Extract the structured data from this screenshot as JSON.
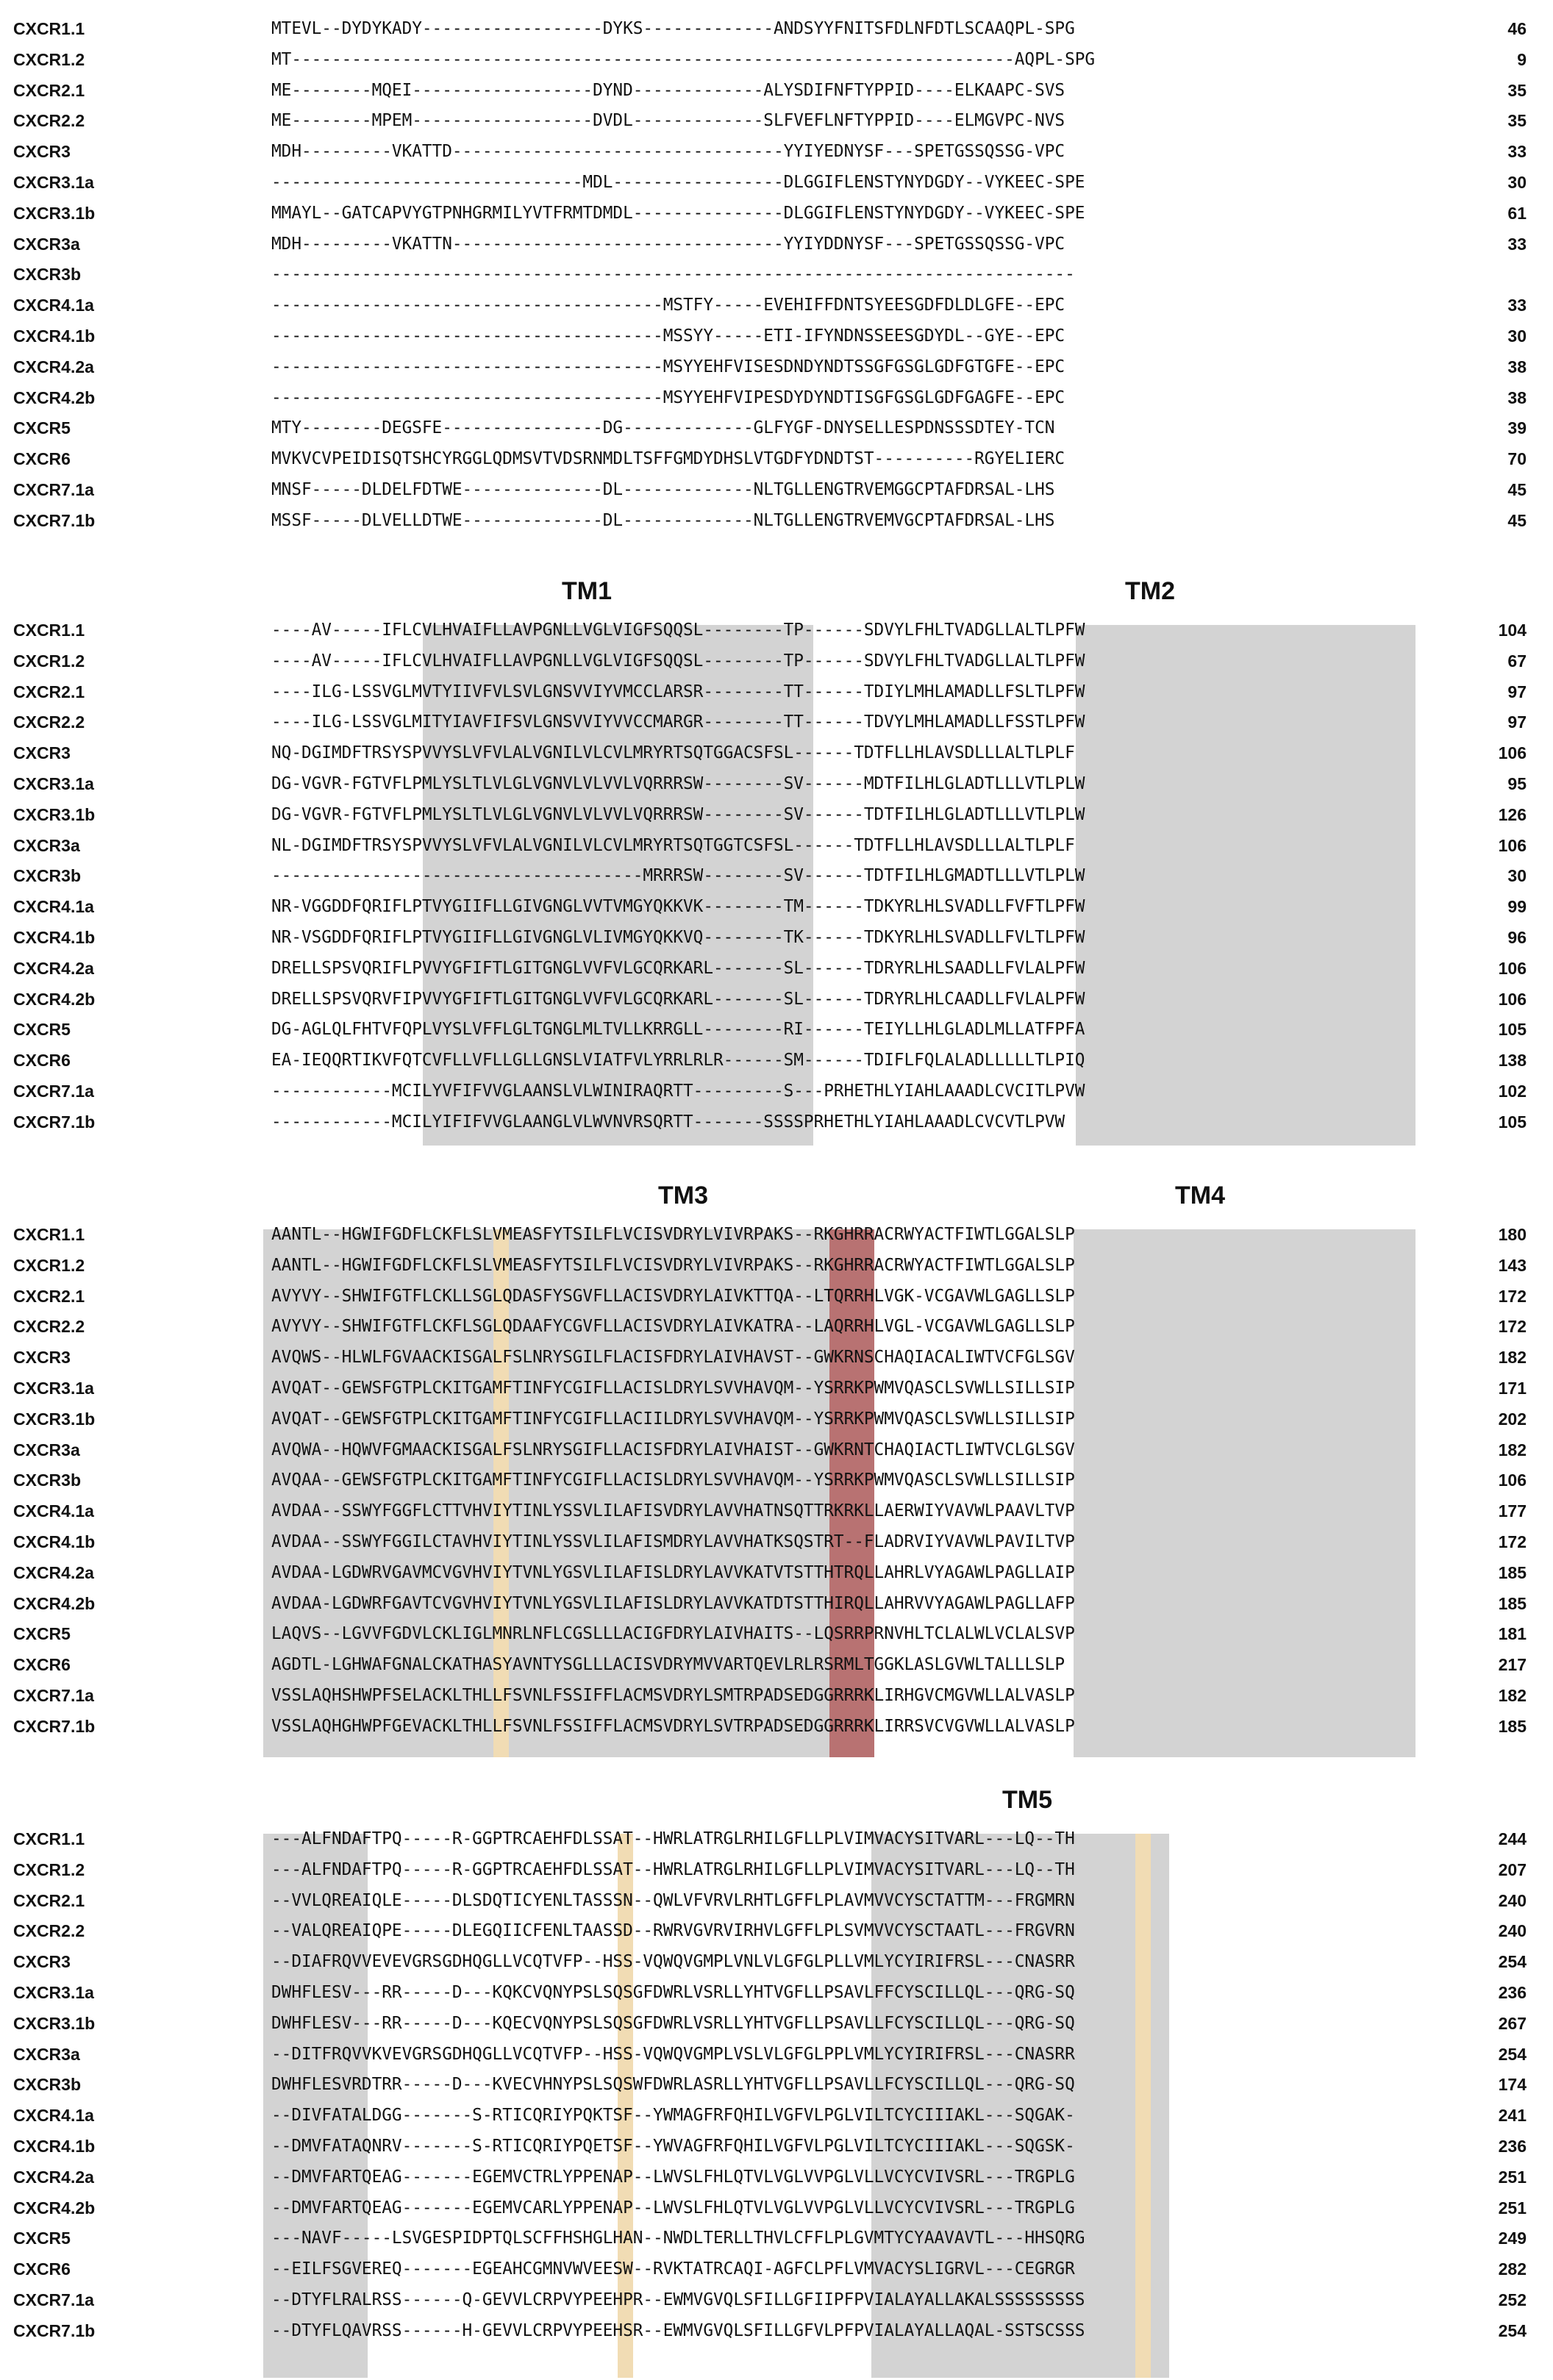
{
  "highlight_colors": {
    "tm_region": "#d3d3d3",
    "cysteine": "#f1dcb4",
    "dry_motif": "#b87272"
  },
  "blocks": [
    {
      "headers": [],
      "rows": [
        {
          "name": "CXCR1.1",
          "seq": "MTEVL--DYDYKADY------------------DYKS-------------ANDSYYFNITSFDLNFDTLSCAAQPL-SPG",
          "num": "46"
        },
        {
          "name": "CXCR1.2",
          "seq": "MT------------------------------------------------------------------------AQPL-SPG",
          "num": "9"
        },
        {
          "name": "CXCR2.1",
          "seq": "ME--------MQEI------------------DYND-------------ALYSDIFNFTYPPID----ELKAAPC-SVS",
          "num": "35"
        },
        {
          "name": "CXCR2.2",
          "seq": "ME--------MPEM------------------DVDL-------------SLFVEFLNFTYPPID----ELMGVPC-NVS",
          "num": "35"
        },
        {
          "name": "CXCR3",
          "seq": "MDH---------VKATTD---------------------------------YYIYEDNYSF---SPETGSSQSSG-VPC",
          "num": "33"
        },
        {
          "name": "CXCR3.1a",
          "seq": "-------------------------------MDL-----------------DLGGIFLENSTYNYDGDY--VYKEEC-SPE",
          "num": "30"
        },
        {
          "name": "CXCR3.1b",
          "seq": "MMAYL--GATCAPVYGTPNHGRMILYVTFRMTDMDL---------------DLGGIFLENSTYNYDGDY--VYKEEC-SPE",
          "num": "61"
        },
        {
          "name": "CXCR3a",
          "seq": "MDH---------VKATTN---------------------------------YYIYDDNYSF---SPETGSSQSSG-VPC",
          "num": "33"
        },
        {
          "name": "CXCR3b",
          "seq": "--------------------------------------------------------------------------------",
          "num": ""
        },
        {
          "name": "CXCR4.1a",
          "seq": "---------------------------------------MSTFY-----EVEHIFFDNTSYEESGDFDLDLGFE--EPC",
          "num": "33"
        },
        {
          "name": "CXCR4.1b",
          "seq": "---------------------------------------MSSYY-----ETI-IFYNDNSSEESGDYDL--GYE--EPC",
          "num": "30"
        },
        {
          "name": "CXCR4.2a",
          "seq": "---------------------------------------MSYYEHFVISESDNDYNDTSSGFGSGLGDFGTGFE--EPC",
          "num": "38"
        },
        {
          "name": "CXCR4.2b",
          "seq": "---------------------------------------MSYYEHFVIPESDYDYNDTISGFGSGLGDFGAGFE--EPC",
          "num": "38"
        },
        {
          "name": "CXCR5",
          "seq": "MTY--------DEGSFE----------------DG-------------GLFYGF-DNYSELLESPDNSSSDTEY-TCN",
          "num": "39"
        },
        {
          "name": "CXCR6",
          "seq": "MVKVCVPEIDISQTSHCYRGGLQDMSVTVDSRNMDLTSFFGMDYDHSLVTGDFYDNDTST----------RGYELIERC",
          "num": "70"
        },
        {
          "name": "CXCR7.1a",
          "seq": "MNSF-----DLDELFDTWE--------------DL-------------NLTGLLENGTRVEMGGCPTAFDRSAL-LHS",
          "num": "45"
        },
        {
          "name": "CXCR7.1b",
          "seq": "MSSF-----DLVELLDTWE--------------DL-------------NLTGLLENGTRVEMVGCPTAFDRSAL-LHS",
          "num": "45"
        }
      ]
    },
    {
      "headers": [
        "TM1",
        "TM2"
      ],
      "rows": [
        {
          "name": "CXCR1.1",
          "seq": "----AV-----IFLCVLHVAIFLLAVPGNLLVGLVIGFSQQSL--------TP------SDVYLFHLTVADGLLALTLPFW",
          "num": "104"
        },
        {
          "name": "CXCR1.2",
          "seq": "----AV-----IFLCVLHVAIFLLAVPGNLLVGLVIGFSQQSL--------TP------SDVYLFHLTVADGLLALTLPFW",
          "num": "67"
        },
        {
          "name": "CXCR2.1",
          "seq": "----ILG-LSSVGLMVTYIIVFVLSVLGNSVVIYVMCCLARSR--------TT------TDIYLMHLAMADLLFSLTLPFW",
          "num": "97"
        },
        {
          "name": "CXCR2.2",
          "seq": "----ILG-LSSVGLMITYIAVFIFSVLGNSVVIYVVCCMARGR--------TT------TDVYLMHLAMADLLFSSTLPFW",
          "num": "97"
        },
        {
          "name": "CXCR3",
          "seq": "NQ-DGIMDFTRSYSPVVYSLVFVLALVGNILVLCVLMRYRTSQTGGACSFSL------TDTFLLHLAVSDLLLALTLPLF",
          "num": "106"
        },
        {
          "name": "CXCR3.1a",
          "seq": "DG-VGVR-FGTVFLPMLYSLTLVLGLVGNVLVLVVLVQRRRSW--------SV------MDTFILHLGLADTLLLVTLPLW",
          "num": "95"
        },
        {
          "name": "CXCR3.1b",
          "seq": "DG-VGVR-FGTVFLPMLYSLTLVLGLVGNVLVLVVLVQRRRSW--------SV------TDTFILHLGLADTLLLVTLPLW",
          "num": "126"
        },
        {
          "name": "CXCR3a",
          "seq": "NL-DGIMDFTRSYSPVVYSLVFVLALVGNILVLCVLMRYRTSQTGGTCSFSL------TDTFLLHLAVSDLLLALTLPLF",
          "num": "106"
        },
        {
          "name": "CXCR3b",
          "seq": "-------------------------------------MRRRSW--------SV------TDTFILHLGMADTLLLVTLPLW",
          "num": "30"
        },
        {
          "name": "CXCR4.1a",
          "seq": "NR-VGGDDFQRIFLPTVYGIIFLLGIVGNGLVVTVMGYQKKVK--------TM------TDKYRLHLSVADLLFVFTLPFW",
          "num": "99"
        },
        {
          "name": "CXCR4.1b",
          "seq": "NR-VSGDDFQRIFLPTVYGIIFLLGIVGNGLVLIVMGYQKKVQ--------TK------TDKYRLHLSVADLLFVLTLPFW",
          "num": "96"
        },
        {
          "name": "CXCR4.2a",
          "seq": "DRELLSPSVQRIFLPVVYGFIFTLGITGNGLVVFVLGCQRKARL-------SL------TDRYRLHLSAADLLFVLALPFW",
          "num": "106"
        },
        {
          "name": "CXCR4.2b",
          "seq": "DRELLSPSVQRVFIPVVYGFIFTLGITGNGLVVFVLGCQRKARL-------SL------TDRYRLHLCAADLLFVLALPFW",
          "num": "106"
        },
        {
          "name": "CXCR5",
          "seq": "DG-AGLQLFHTVFQPLVYSLVFFLGLTGNGLMLTVLLKRRGLL--------RI------TEIYLLHLGLADLMLLATFPFA",
          "num": "105"
        },
        {
          "name": "CXCR6",
          "seq": "EA-IEQQRTIKVFQTCVFLLVFLLGLLGNSLVIATFVLYRRLRLR------SM------TDIFLFQLALADLLLLLTLPIQ",
          "num": "138"
        },
        {
          "name": "CXCR7.1a",
          "seq": "------------MCILYVFIFVVGLAANSLVLWINIRAQRTT---------S---PRHETHLYIAHLAAADLCVCITLPVW",
          "num": "102"
        },
        {
          "name": "CXCR7.1b",
          "seq": "------------MCILYIFIFVVGLAANGLVLWVNVRSQRTT-------SSSSPRHETHLYIAHLAAADLCVCVTLPVW",
          "num": "105"
        }
      ]
    },
    {
      "headers": [
        "TM3",
        "TM4"
      ],
      "rows": [
        {
          "name": "CXCR1.1",
          "seq": "AANTL--HGWIFGDFLCKFLSLVMEASFYTSILFLVCISVDRYLVIVRPAKS--RKGHRRACRWYACTFIWTLGGALSLP",
          "num": "180"
        },
        {
          "name": "CXCR1.2",
          "seq": "AANTL--HGWIFGDFLCKFLSLVMEASFYTSILFLVCISVDRYLVIVRPAKS--RKGHRRACRWYACTFIWTLGGALSLP",
          "num": "143"
        },
        {
          "name": "CXCR2.1",
          "seq": "AVYVY--SHWIFGTFLCKLLSGLQDASFYSGVFLLACISVDRYLAIVKTTQA--LTQRRHLVGK-VCGAVWLGAGLLSLP",
          "num": "172"
        },
        {
          "name": "CXCR2.2",
          "seq": "AVYVY--SHWIFGTFLCKFLSGLQDAAFYCGVFLLACISVDRYLAIVKATRA--LAQRRHLVGL-VCGAVWLGAGLLSLP",
          "num": "172"
        },
        {
          "name": "CXCR3",
          "seq": "AVQWS--HLWLFGVAACKISGALFSLNRYSGILFLACISFDRYLAIVHAVST--GWKRNSCHAQIACALIWTVCFGLSGV",
          "num": "182"
        },
        {
          "name": "CXCR3.1a",
          "seq": "AVQAT--GEWSFGTPLCKITGAMFTINFYCGIFLLACISLDRYLSVVHAVQM--YSRRKPWMVQASCLSVWLLSILLSIP",
          "num": "171"
        },
        {
          "name": "CXCR3.1b",
          "seq": "AVQAT--GEWSFGTPLCKITGAMFTINFYCGIFLLACIILDRYLSVVHAVQM--YSRRKPWMVQASCLSVWLLSILLSIP",
          "num": "202"
        },
        {
          "name": "CXCR3a",
          "seq": "AVQWA--HQWVFGMAACKISGALFSLNRYSGIFLLACISFDRYLAIVHAIST--GWKRNTCHAQIACTLIWTVCLGLSGV",
          "num": "182"
        },
        {
          "name": "CXCR3b",
          "seq": "AVQAA--GEWSFGTPLCKITGAMFTINFYCGIFLLACISLDRYLSVVHAVQM--YSRRKPWMVQASCLSVWLLSILLSIP",
          "num": "106"
        },
        {
          "name": "CXCR4.1a",
          "seq": "AVDAA--SSWYFGGFLCTTVHVIYTINLYSSVLILAFISVDRYLAVVHATNSQTTRKRKLLAERWIYVAVWLPAAVLTVP",
          "num": "177"
        },
        {
          "name": "CXCR4.1b",
          "seq": "AVDAA--SSWYFGGILCTAVHVIYTINLYSSVLILAFISMDRYLAVVHATKSQSTRT--FLADRVIYVAVWLPAVILTVP",
          "num": "172"
        },
        {
          "name": "CXCR4.2a",
          "seq": "AVDAA-LGDWRVGAVMCVGVHVIYTVNLYGSVLILAFISLDRYLAVVKATVTSTTHTRQLLAHRLVYAGAWLPAGLLAIP",
          "num": "185"
        },
        {
          "name": "CXCR4.2b",
          "seq": "AVDAA-LGDWRFGAVTCVGVHVIYTVNLYGSVLILAFISLDRYLAVVKATDTSTTHIRQLLAHRVVYAGAWLPAGLLAFP",
          "num": "185"
        },
        {
          "name": "CXCR5",
          "seq": "LAQVS--LGVVFGDVLCKLIGLMNRLNFLCGSLLLACIGFDRYLAIVHAITS--LQSRRPRNVHLTCLALWLVCLALSVP",
          "num": "181"
        },
        {
          "name": "CXCR6",
          "seq": "AGDTL-LGHWAFGNALCKATHASYAVNTYSGLLLACISVDRYMVVARTQEVLRLRSRMLTGGKLASLGVWLTALLLSLP",
          "num": "217"
        },
        {
          "name": "CXCR7.1a",
          "seq": "VSSLAQHSHWPFSELACKLTHLLFSVNLFSSIFFLACMSVDRYLSMTRPADSEDGGRRRKLIRHGVCMGVWLLALVASLP",
          "num": "182"
        },
        {
          "name": "CXCR7.1b",
          "seq": "VSSLAQHGHWPFGEVACKLTHLLFSVNLFSSIFFLACMSVDRYLSVTRPADSEDGGRRRKLIRRSVCVGVWLLALVASLP",
          "num": "185"
        }
      ]
    },
    {
      "headers": [
        "TM5"
      ],
      "rows": [
        {
          "name": "CXCR1.1",
          "seq": "---ALFNDAFTPQ-----R-GGPTRCAEHFDLSSAT--HWRLATRGLRHILGFLLPLVIMVACYSITVARL---LQ--TH",
          "num": "244"
        },
        {
          "name": "CXCR1.2",
          "seq": "---ALFNDAFTPQ-----R-GGPTRCAEHFDLSSAT--HWRLATRGLRHILGFLLPLVIMVACYSITVARL---LQ--TH",
          "num": "207"
        },
        {
          "name": "CXCR2.1",
          "seq": "--VVLQREAIQLE-----DLSDQTICYENLTASSSN--QWLVFVRVLRHTLGFFLPLAVMVVCYSCTATTM---FRGMRN",
          "num": "240"
        },
        {
          "name": "CXCR2.2",
          "seq": "--VALQREAIQPE-----DLEGQIICFENLTAASSD--RWRVGVRVIRHVLGFFLPLSVMVVCYSCTAATL---FRGVRN",
          "num": "240"
        },
        {
          "name": "CXCR3",
          "seq": "--DIAFRQVVEVEVGRSGDHQGLLVCQTVFP--HSS-VQWQVGMPLVNLVLGFGLPLLVMLYCYIRIFRSL---CNASRR",
          "num": "254"
        },
        {
          "name": "CXCR3.1a",
          "seq": "DWHFLESV---RR-----D---KQKCVQNYPSLSQSGFDWRLVSRLLYHTVGFLLPSAVLFFCYSCILLQL---QRG-SQ",
          "num": "236"
        },
        {
          "name": "CXCR3.1b",
          "seq": "DWHFLESV---RR-----D---KQECVQNYPSLSQSGFDWRLVSRLLYHTVGFLLPSAVLLFCYSCILLQL---QRG-SQ",
          "num": "267"
        },
        {
          "name": "CXCR3a",
          "seq": "--DITFRQVVKVEVGRSGDHQGLLVCQTVFP--HSS-VQWQVGMPLVSLVLGFGLPPLVMLYCYIRIFRSL---CNASRR",
          "num": "254"
        },
        {
          "name": "CXCR3b",
          "seq": "DWHFLESVRDTRR-----D---KVECVHNYPSLSQSWFDWRLASRLLYHTVGFLLPSAVLLFCYSCILLQL---QRG-SQ",
          "num": "174"
        },
        {
          "name": "CXCR4.1a",
          "seq": "--DIVFATALDGG-------S-RTICQRIYPQKTSF--YWMAGFRFQHILVGFVLPGLVILTCYCIIIAKL---SQGAK-",
          "num": "241"
        },
        {
          "name": "CXCR4.1b",
          "seq": "--DMVFATAQNRV-------S-RTICQRIYPQETSF--YWVAGFRFQHILVGFVLPGLVILTCYCIIIAKL---SQGSK-",
          "num": "236"
        },
        {
          "name": "CXCR4.2a",
          "seq": "--DMVFARTQEAG-------EGEMVCTRLYPPENAP--LWVSLFHLQTVLVGLVVPGLVLLVCYCVIVSRL---TRGPLG",
          "num": "251"
        },
        {
          "name": "CXCR4.2b",
          "seq": "--DMVFARTQEAG-------EGEMVCARLYPPENAP--LWVSLFHLQTVLVGLVVPGLVLLVCYCVIVSRL---TRGPLG",
          "num": "251"
        },
        {
          "name": "CXCR5",
          "seq": "---NAVF-----LSVGESPIDPTQLSCFFHSHGLHAN--NWDLTERLLTHVLCFFLPLGVMTYCYAAVAVTL---HHSQRG",
          "num": "249"
        },
        {
          "name": "CXCR6",
          "seq": "--EILFSGVEREQ-------EGEAHCGMNVWVEESW--RVKTATRCAQI-AGFCLPFLVMVACYSLIGRVL---CEGRGR",
          "num": "282"
        },
        {
          "name": "CXCR7.1a",
          "seq": "--DTYFLRALRSS------Q-GEVVLCRPVYPEEHPR--EWMVGVQLSFILLGFIIPFPVIALAYALLAKALSSSSSSSSS",
          "num": "252"
        },
        {
          "name": "CXCR7.1b",
          "seq": "--DTYFLQAVRSS------H-GEVVLCRPVYPEEHSR--EWMVGVQLSFILLGFVLPFPVIALAYALLAQAL-SSTSCSSS",
          "num": "254"
        }
      ]
    }
  ]
}
